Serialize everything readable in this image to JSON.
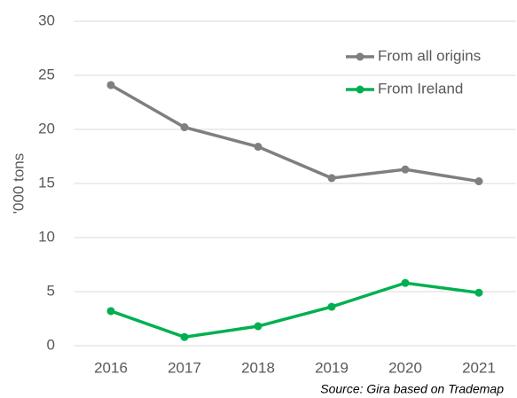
{
  "chart_data": {
    "type": "line",
    "y_label": "'000 tons",
    "annotation": "Source: Gira based on Trademap",
    "categories": [
      "2016",
      "2017",
      "2018",
      "2019",
      "2020",
      "2021"
    ],
    "series": [
      {
        "name": "From all origins",
        "color": "#7f7f7f",
        "values": [
          24.1,
          20.2,
          18.4,
          15.5,
          16.3,
          15.2
        ]
      },
      {
        "name": "From Ireland",
        "color": "#00b050",
        "values": [
          3.2,
          0.8,
          1.8,
          3.6,
          5.8,
          4.9
        ]
      }
    ],
    "ylim": [
      0,
      30
    ],
    "yticks": [
      0,
      5,
      10,
      15,
      20,
      25,
      30
    ],
    "grid": true,
    "legend": "top-right"
  }
}
